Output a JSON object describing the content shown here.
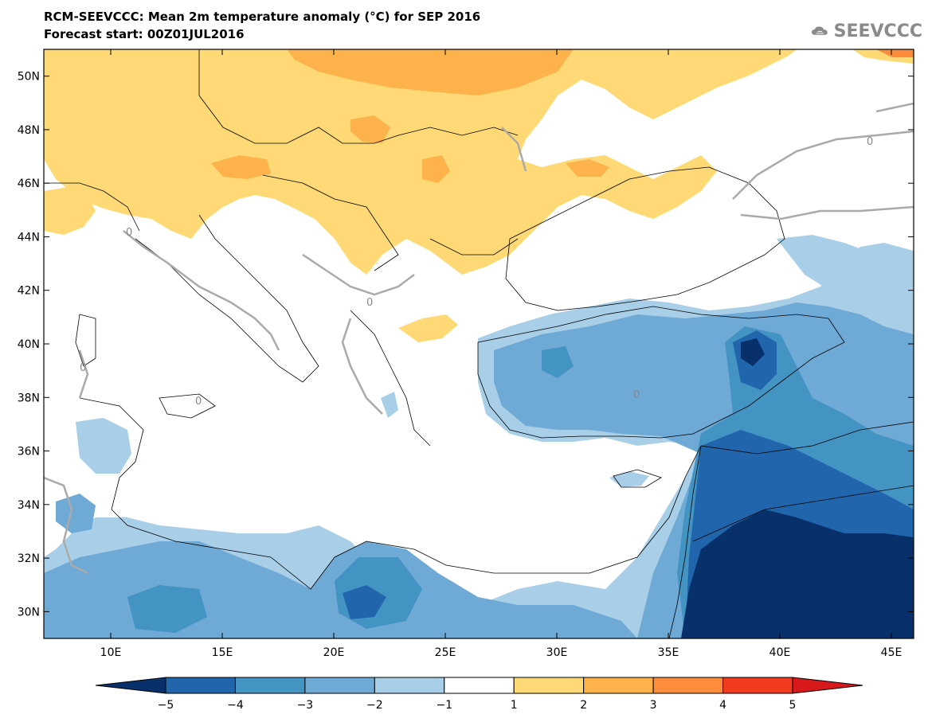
{
  "header": {
    "title": "RCM-SEEVCCC: Mean 2m temperature anomaly (°C) for SEP 2016",
    "subtitle": "Forecast start: 00Z01JUL2016"
  },
  "logo": {
    "text": "SEEVCCC",
    "icon": "cloud-icon"
  },
  "map": {
    "lat_ticks": [
      "50N",
      "48N",
      "46N",
      "44N",
      "42N",
      "40N",
      "38N",
      "36N",
      "34N",
      "32N",
      "30N"
    ],
    "lon_ticks": [
      "10E",
      "15E",
      "20E",
      "25E",
      "30E",
      "35E",
      "40E",
      "45E"
    ],
    "lat_range": [
      29,
      51
    ],
    "lon_range": [
      7,
      46
    ],
    "contour_label": "0",
    "sea_color": "#ffffff",
    "border_color": "#000000"
  },
  "colorbar": {
    "labels": [
      "−5",
      "−4",
      "−3",
      "−2",
      "−1",
      "1",
      "2",
      "3",
      "4",
      "5"
    ],
    "colors": [
      "#08306b",
      "#2166ac",
      "#4393c3",
      "#6fa9d6",
      "#a9cfe8",
      "#ffffff",
      "#fed976",
      "#feb24c",
      "#fd8d3c",
      "#f03b20",
      "#d7191c"
    ]
  }
}
